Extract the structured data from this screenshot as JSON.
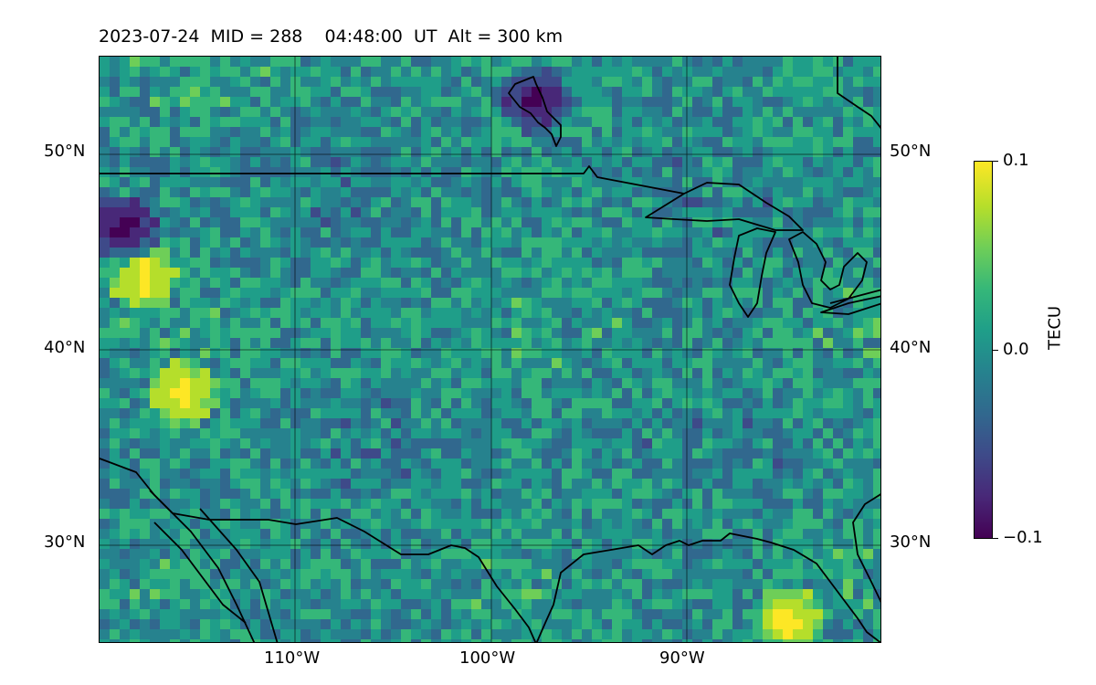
{
  "map": {
    "title": "2023-07-24  MID = 288    04:48:00  UT  Alt = 300 km",
    "extent": {
      "lon_min": -120,
      "lon_max": -80,
      "lat_min": 25,
      "lat_max": 55
    },
    "lat_ticks": [
      {
        "value": 50,
        "label": "50°N"
      },
      {
        "value": 40,
        "label": "40°N"
      },
      {
        "value": 30,
        "label": "30°N"
      }
    ],
    "lon_ticks": [
      {
        "value": -110,
        "label": "110°W"
      },
      {
        "value": -100,
        "label": "100°W"
      },
      {
        "value": -90,
        "label": "90°W"
      }
    ],
    "colormap": "viridis",
    "background_color": "#2a8c89",
    "coastline_color": "#000000",
    "notable_values": [
      {
        "lon": -98,
        "lat": 53,
        "value": -0.1
      },
      {
        "lon": -85,
        "lat": 26.5,
        "value": 0.1
      },
      {
        "lon": -118,
        "lat": 44,
        "value": 0.1
      },
      {
        "lon": -116,
        "lat": 38,
        "value": 0.1
      },
      {
        "lon": -119,
        "lat": 46.5,
        "value": -0.1
      }
    ]
  },
  "colorbar": {
    "label": "TECU",
    "ticks": [
      {
        "value": 0.1,
        "label": "0.1"
      },
      {
        "value": 0.0,
        "label": "0.0"
      },
      {
        "value": -0.1,
        "label": "−0.1"
      }
    ],
    "range": [
      -0.1,
      0.1
    ]
  }
}
